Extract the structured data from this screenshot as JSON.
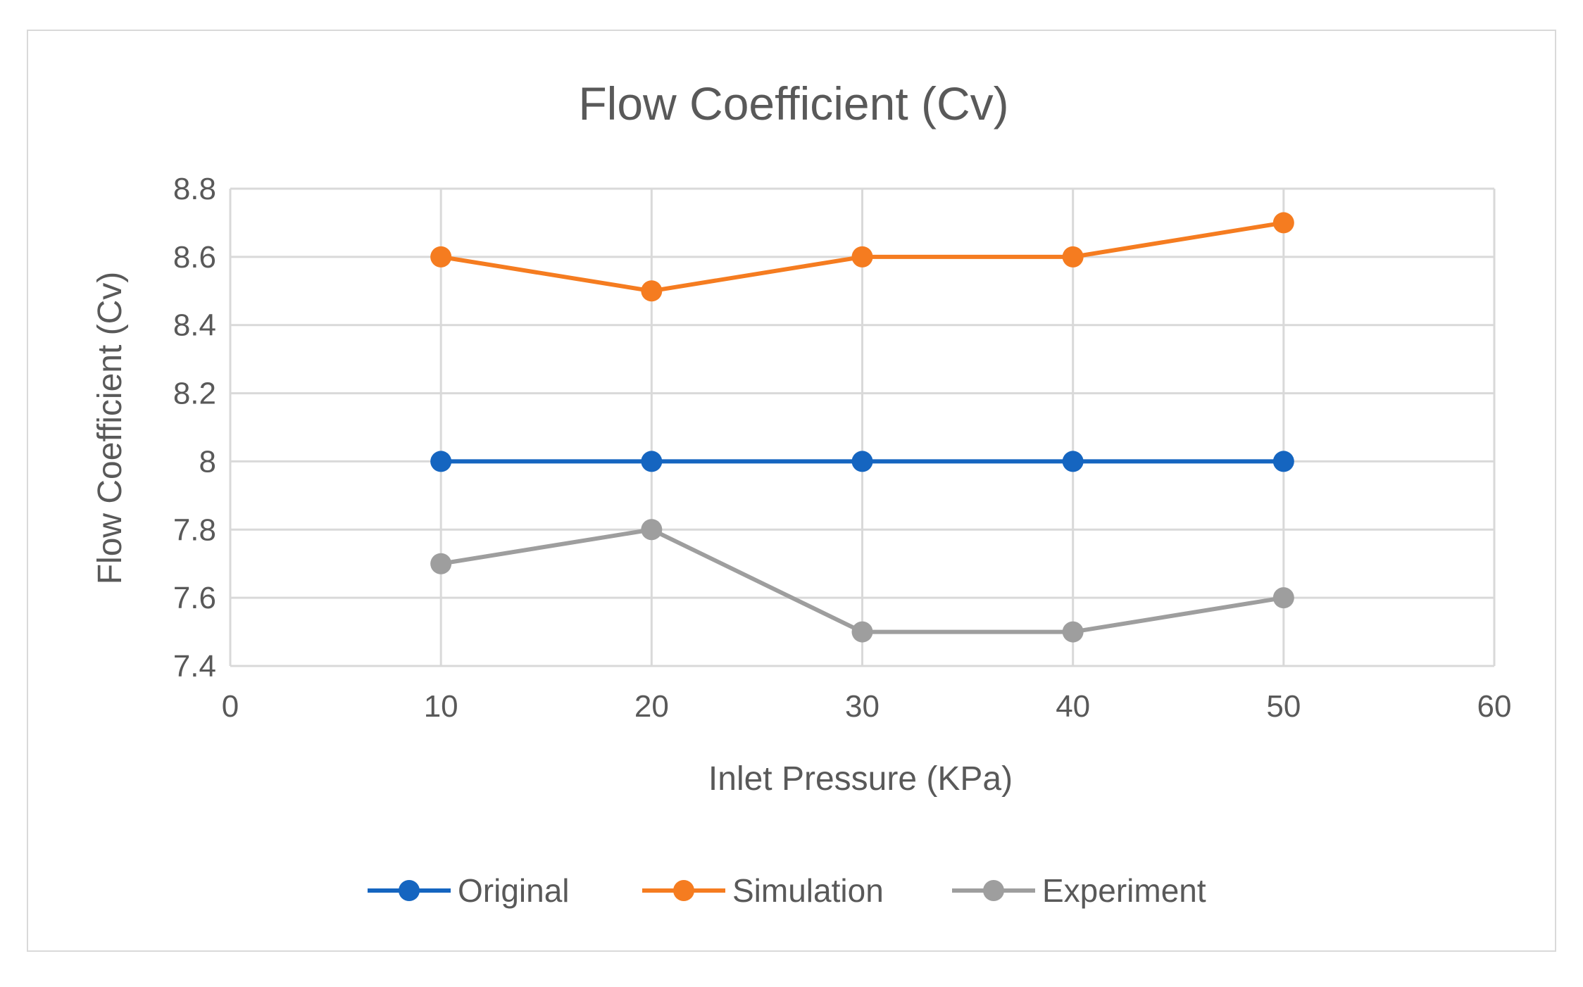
{
  "chart_data": {
    "type": "line",
    "title": "Flow Coefficient (Cv)",
    "xlabel": "Inlet Pressure (KPa)",
    "ylabel": "Flow Coefficient (Cv)",
    "xlim": [
      0,
      60
    ],
    "ylim": [
      7.4,
      8.8
    ],
    "x_ticks": [
      "0",
      "10",
      "20",
      "30",
      "40",
      "50",
      "60"
    ],
    "y_ticks": [
      "7.4",
      "7.6",
      "7.8",
      "8",
      "8.2",
      "8.4",
      "8.6",
      "8.8"
    ],
    "grid": true,
    "legend_position": "bottom",
    "x": [
      10,
      20,
      30,
      40,
      50
    ],
    "series": [
      {
        "name": "Original",
        "color": "#1565C0",
        "values": [
          8.0,
          8.0,
          8.0,
          8.0,
          8.0
        ]
      },
      {
        "name": "Simulation",
        "color": "#F57C20",
        "values": [
          8.6,
          8.5,
          8.6,
          8.6,
          8.7
        ]
      },
      {
        "name": "Experiment",
        "color": "#9E9E9E",
        "values": [
          7.7,
          7.8,
          7.5,
          7.5,
          7.6
        ]
      }
    ]
  }
}
